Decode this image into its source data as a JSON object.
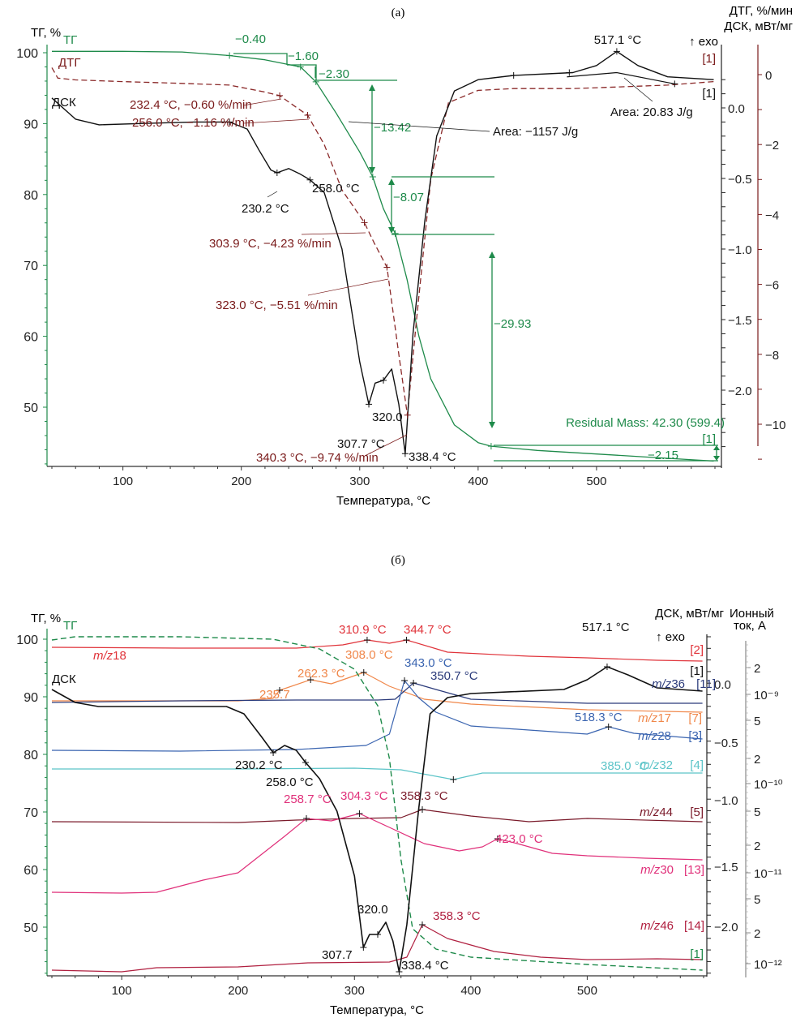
{
  "figure": {
    "panel_a_label": "(а)",
    "panel_b_label": "(б)"
  },
  "chart_data": [
    {
      "type": "line",
      "panel": "(а)",
      "xlabel": "Температура, °C",
      "xlim": [
        40,
        600
      ],
      "xticks": [
        100,
        200,
        300,
        400,
        500
      ],
      "axes": {
        "left": {
          "label": "ТГ, %",
          "ylim": [
            41.7,
            101
          ],
          "ticks": [
            50,
            60,
            70,
            80,
            90,
            100
          ],
          "color": "#1e8a4a"
        },
        "right_dsc": {
          "label": "ДСК, мВт/мг",
          "sublabel": "↑ exo",
          "ylim": [
            -2.5,
            0.25
          ],
          "ticks": [
            "0.0",
            "-0.5",
            "-1.0",
            "-1.5",
            "-2.0"
          ],
          "tick_values": [
            0.0,
            -0.5,
            -1.0,
            -1.5,
            -2.0
          ],
          "color": "#222222"
        },
        "right_dtg": {
          "label": "ДТГ, %/мин",
          "ylim": [
            -11.2,
            0.8
          ],
          "ticks": [
            "0",
            "-2",
            "-4",
            "-6",
            "-8",
            "-10"
          ],
          "tick_values": [
            0,
            -2,
            -4,
            -6,
            -8,
            -10
          ],
          "color": "#7a1a1a"
        }
      },
      "series": [
        {
          "name": "ТГ",
          "axis": "left",
          "color": "#1e8a4a",
          "dash": false,
          "x": [
            40,
            100,
            150,
            190,
            220,
            250,
            263,
            280,
            300,
            311,
            320,
            330,
            340,
            350,
            360,
            380,
            400,
            411,
            450,
            500,
            550,
            599
          ],
          "y": [
            100.2,
            100.2,
            100.1,
            99.6,
            99.0,
            98.0,
            95.9,
            91.5,
            86.0,
            82.5,
            78.0,
            74.5,
            68.0,
            60.0,
            54.0,
            47.5,
            45.0,
            44.5,
            43.9,
            43.4,
            42.9,
            42.4
          ]
        },
        {
          "name": "ДТГ",
          "axis": "right_dtg",
          "color": "#8b2a2a",
          "dash": true,
          "x": [
            40,
            45,
            60,
            100,
            150,
            190,
            220,
            232.4,
            245,
            256,
            270,
            285,
            303.9,
            312,
            323,
            333,
            340.3,
            348,
            360,
            375,
            400,
            430,
            480,
            520,
            560,
            599
          ],
          "y": [
            0.2,
            -0.1,
            -0.15,
            -0.2,
            -0.25,
            -0.3,
            -0.5,
            -0.6,
            -0.9,
            -1.16,
            -2.0,
            -3.3,
            -4.23,
            -4.8,
            -5.51,
            -8.0,
            -9.74,
            -7.0,
            -3.0,
            -0.8,
            -0.45,
            -0.4,
            -0.4,
            -0.35,
            -0.3,
            -0.2
          ]
        },
        {
          "name": "ДСК",
          "axis": "right_dsc",
          "color": "#111111",
          "dash": false,
          "x": [
            40,
            60,
            80,
            120,
            160,
            190,
            205,
            215,
            225,
            230.2,
            240,
            250,
            258,
            270,
            285,
            300,
            307.7,
            313,
            320,
            327,
            333,
            338.4,
            345,
            355,
            365,
            380,
            400,
            430,
            480,
            500,
            517.1,
            535,
            560,
            599
          ],
          "y": [
            0.07,
            -0.08,
            -0.12,
            -0.11,
            -0.1,
            -0.1,
            -0.15,
            -0.3,
            -0.44,
            -0.46,
            -0.43,
            -0.47,
            -0.51,
            -0.6,
            -1.0,
            -1.8,
            -2.1,
            -1.95,
            -1.93,
            -1.85,
            -2.1,
            -2.45,
            -1.6,
            -0.8,
            -0.2,
            0.12,
            0.2,
            0.23,
            0.25,
            0.3,
            0.4,
            0.3,
            0.22,
            0.2
          ]
        }
      ],
      "annotations": {
        "tg_steps": [
          "−0.40",
          "−1.60",
          "−2.30",
          "−13.42",
          "−8.07",
          "−29.93",
          "−2.15"
        ],
        "residual_mass": "Residual Mass: 42.30 (599.4)",
        "dtg_points": [
          "232.4 °C, −0.60 %/min",
          "256.0 °C, −1.16 %/min",
          "303.9 °C, −4.23 %/min",
          "323.0 °C, −5.51 %/min",
          "340.3 °C, −9.74 %/min"
        ],
        "dsc_points": [
          "230.2 °C",
          "258.0 °C",
          "307.7 °C",
          "320.0",
          "338.4 °C",
          "517.1 °C"
        ],
        "areas": [
          "Area: −1157 J/g",
          "Area: 20.83 J/g"
        ],
        "labels": {
          "tg": "ТГ",
          "dtg": "ДТГ",
          "dsc": "ДСК",
          "seg1": "[1]"
        }
      }
    },
    {
      "type": "line",
      "panel": "(б)",
      "xlabel": "Температура, °C",
      "xlim": [
        40,
        600
      ],
      "xticks": [
        100,
        200,
        300,
        400,
        500
      ],
      "axes": {
        "left": {
          "label": "ТГ, %",
          "ylim": [
            41.6,
            101
          ],
          "ticks": [
            50,
            60,
            70,
            80,
            90,
            100
          ],
          "color": "#1e8a4a"
        },
        "right_dsc": {
          "label": "ДСК, мВт/мг",
          "sublabel": "↑ exo",
          "ticks": [
            "0.0",
            "-0.5",
            "-1.0",
            "-1.5",
            "-2.0"
          ],
          "tick_values": [
            0.0,
            -0.5,
            -1.0,
            -1.5,
            -2.0
          ]
        },
        "right_ion": {
          "label": "Ионный ток, А",
          "scale": "log",
          "ticks": [
            "2",
            "10⁻⁹",
            "5",
            "2",
            "10⁻¹⁰",
            "5",
            "2",
            "10⁻¹¹",
            "5",
            "2",
            "10⁻¹²"
          ]
        }
      },
      "series": [
        {
          "name": "ТГ",
          "color": "#1e8a4a",
          "dash": true,
          "label": "[1]"
        },
        {
          "name": "ДСК",
          "color": "#111111",
          "label": "[1]"
        },
        {
          "name": "m/z18",
          "tag": "[2]",
          "color": "#e0333a",
          "peaks": [
            "310.9 °C",
            "344.7 °C"
          ]
        },
        {
          "name": "m/z36",
          "tag": "[11]",
          "color": "#2a3a7a",
          "peaks": [
            "350.7 °C"
          ]
        },
        {
          "name": "m/z17",
          "tag": "[7]",
          "color": "#f0874a",
          "peaks": [
            "235.7",
            "262.3 °C",
            "308.0 °C"
          ]
        },
        {
          "name": "m/z28",
          "tag": "[3]",
          "color": "#3a64b0",
          "peaks": [
            "343.0 °C",
            "518.3 °C"
          ]
        },
        {
          "name": "m/z32",
          "tag": "[4]",
          "color": "#5cc4c8",
          "peaks": [
            "385.0 °C"
          ]
        },
        {
          "name": "m/z44",
          "tag": "[5]",
          "color": "#7a1a2a",
          "peaks": [
            "358.3 °C"
          ]
        },
        {
          "name": "m/z30",
          "tag": "[13]",
          "color": "#e0307a",
          "peaks": [
            "258.7 °C",
            "304.3 °C",
            "423.0 °C"
          ]
        },
        {
          "name": "m/z46",
          "tag": "[14]",
          "color": "#b02040",
          "peaks": [
            "358.3 °C"
          ]
        }
      ],
      "annotations": {
        "dsc_points": [
          "517.1 °C",
          "230.2 °C",
          "258.0 °C",
          "320.0",
          "307.7",
          "338.4 °C"
        ]
      }
    }
  ]
}
